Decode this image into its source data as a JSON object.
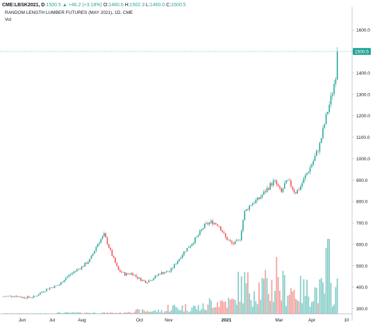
{
  "header": {
    "symbol": "CME:LBSK2021, D",
    "last": "1500.5",
    "change": "+46.2 (+3.18%)",
    "o_label": "O:",
    "o_value": "1460.6",
    "h_label": "H:",
    "h_value": "1502.3",
    "l_label": "L:",
    "l_value": "1460.0",
    "c_label": "C:",
    "c_value": "1500.5"
  },
  "chart_data": {
    "type": "candlestick",
    "title": "RANDOM LENGTH LUMBER FUTURES (MAY 2021), 1D, CME",
    "volume_label": "Vol",
    "y_ticks": [
      "1600.0",
      "1500.0",
      "1400.0",
      "1300.0",
      "1200.0",
      "1100.0",
      "1000.0",
      "900.0",
      "800.0",
      "700.0",
      "600.0",
      "500.0",
      "400.0",
      "300.0"
    ],
    "ylim": [
      250,
      1650
    ],
    "x_ticks": [
      "Jun",
      "Jul",
      "Aug",
      "Oct",
      "Nov",
      "2021",
      "Mar",
      "Apr",
      "10"
    ],
    "last_price_label": "1500.5",
    "colors": {
      "up": "#26a69a",
      "down": "#ef5350",
      "up_vol": "#26a69a",
      "down_vol": "#ef5350",
      "grid": "#e6e6e6",
      "axis": "#b2b5be",
      "price_line": "#26a69a"
    },
    "path_anchors": [
      [
        0,
        355
      ],
      [
        20,
        360
      ],
      [
        35,
        352
      ],
      [
        50,
        355
      ],
      [
        60,
        378
      ],
      [
        70,
        395
      ],
      [
        85,
        410
      ],
      [
        95,
        445
      ],
      [
        110,
        480
      ],
      [
        120,
        500
      ],
      [
        130,
        530
      ],
      [
        140,
        600
      ],
      [
        150,
        645
      ],
      [
        160,
        560
      ],
      [
        170,
        480
      ],
      [
        180,
        460
      ],
      [
        190,
        465
      ],
      [
        200,
        440
      ],
      [
        210,
        425
      ],
      [
        220,
        440
      ],
      [
        230,
        465
      ],
      [
        245,
        475
      ],
      [
        255,
        520
      ],
      [
        265,
        565
      ],
      [
        275,
        600
      ],
      [
        285,
        640
      ],
      [
        295,
        690
      ],
      [
        305,
        705
      ],
      [
        315,
        690
      ],
      [
        325,
        630
      ],
      [
        335,
        600
      ],
      [
        345,
        620
      ],
      [
        352,
        750
      ],
      [
        362,
        790
      ],
      [
        372,
        810
      ],
      [
        380,
        840
      ],
      [
        390,
        880
      ],
      [
        395,
        895
      ],
      [
        400,
        870
      ],
      [
        405,
        840
      ],
      [
        410,
        880
      ],
      [
        415,
        895
      ],
      [
        420,
        870
      ],
      [
        425,
        840
      ],
      [
        432,
        865
      ],
      [
        440,
        920
      ],
      [
        450,
        980
      ],
      [
        460,
        1060
      ],
      [
        470,
        1200
      ],
      [
        478,
        1300
      ],
      [
        483,
        1380
      ],
      [
        488,
        1500
      ]
    ]
  }
}
